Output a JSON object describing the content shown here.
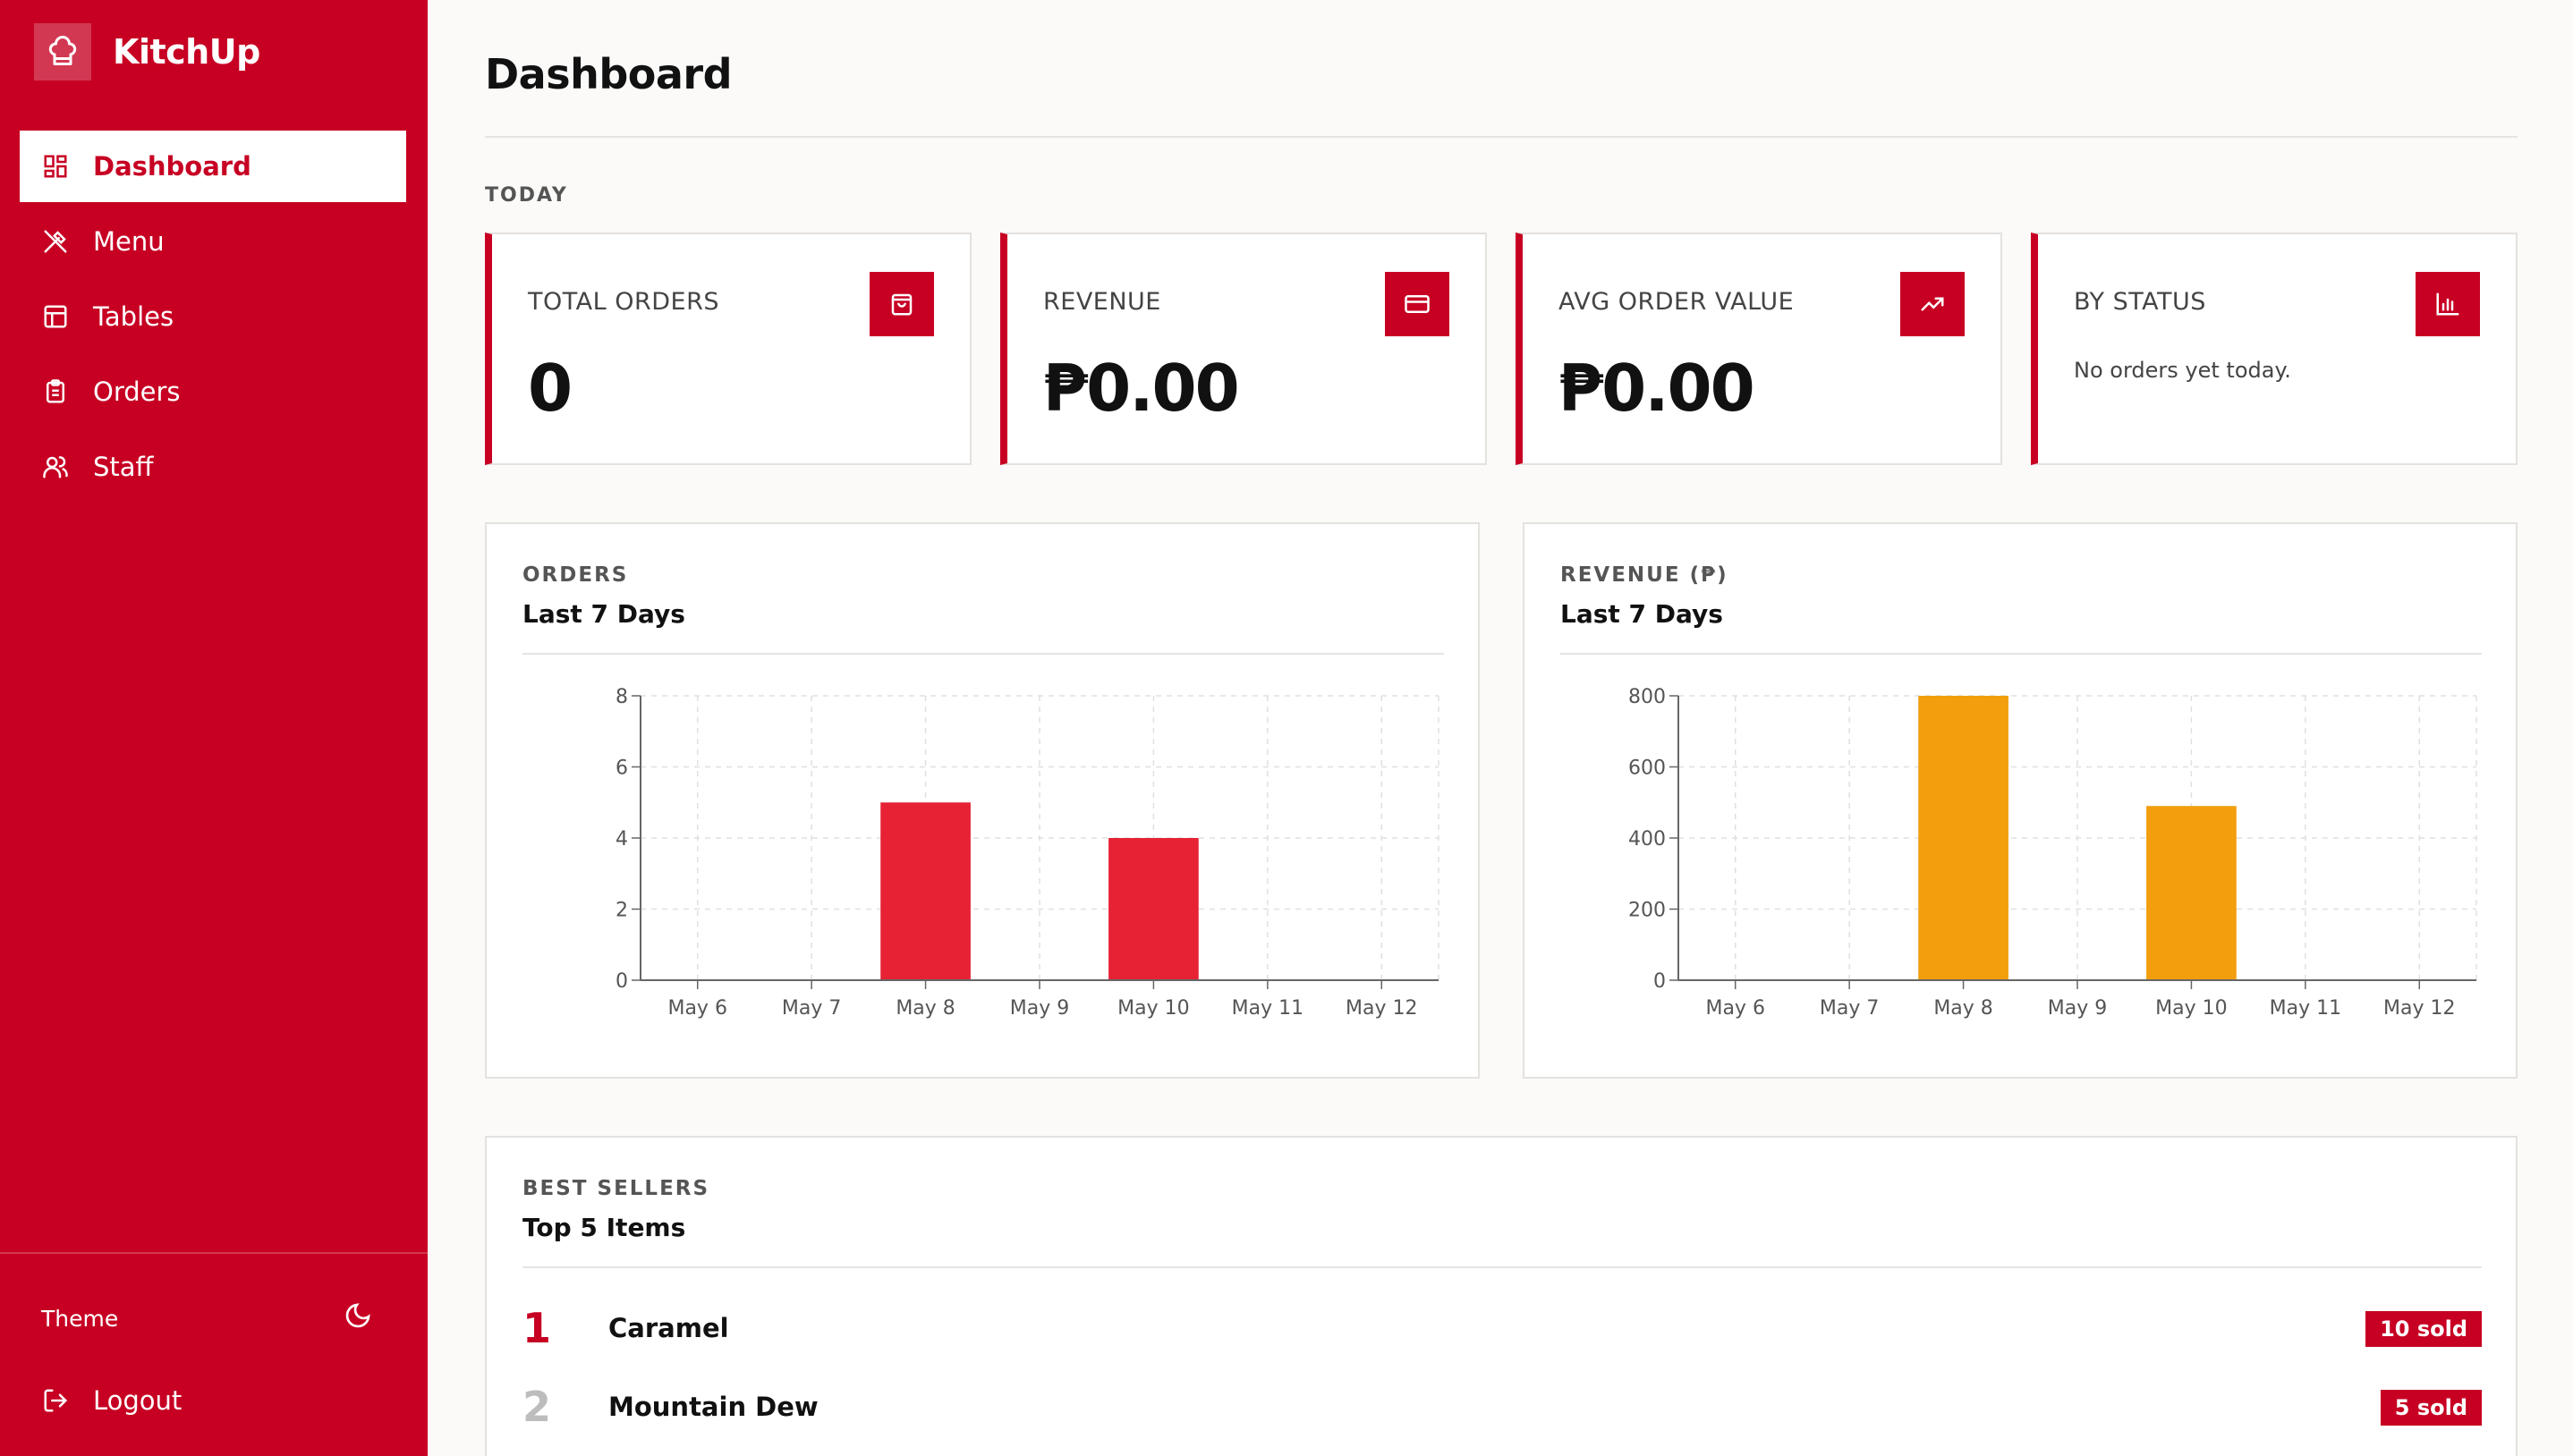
{
  "app": {
    "name": "KitchUp"
  },
  "sidebar": {
    "items": [
      {
        "label": "Dashboard",
        "icon": "dashboard-grid-icon",
        "active": true
      },
      {
        "label": "Menu",
        "icon": "utensils-icon",
        "active": false
      },
      {
        "label": "Tables",
        "icon": "table-icon",
        "active": false
      },
      {
        "label": "Orders",
        "icon": "clipboard-icon",
        "active": false
      },
      {
        "label": "Staff",
        "icon": "users-icon",
        "active": false
      }
    ],
    "theme_label": "Theme",
    "logout_label": "Logout"
  },
  "page": {
    "title": "Dashboard",
    "section_label": "TODAY"
  },
  "stats": [
    {
      "label": "TOTAL ORDERS",
      "value": "0",
      "icon": "shopping-bag-icon"
    },
    {
      "label": "REVENUE",
      "value": "₱0.00",
      "icon": "credit-card-icon"
    },
    {
      "label": "AVG ORDER VALUE",
      "value": "₱0.00",
      "icon": "trending-up-icon"
    },
    {
      "label": "BY STATUS",
      "note": "No orders yet today.",
      "icon": "bar-chart-icon"
    }
  ],
  "colors": {
    "brand": "#c70023",
    "orders_bar": "#e62234",
    "revenue_bar": "#f29e0d"
  },
  "chart_data": [
    {
      "type": "bar",
      "kicker": "ORDERS",
      "title": "Last 7 Days",
      "categories": [
        "May 6",
        "May 7",
        "May 8",
        "May 9",
        "May 10",
        "May 11",
        "May 12"
      ],
      "values": [
        0,
        0,
        5,
        0,
        4,
        0,
        0
      ],
      "ylim": [
        0,
        8
      ],
      "yticks": [
        "0",
        "2",
        "4",
        "6",
        "8"
      ],
      "grid": true,
      "color": "#e62234"
    },
    {
      "type": "bar",
      "kicker": "REVENUE (₱)",
      "title": "Last 7 Days",
      "categories": [
        "May 6",
        "May 7",
        "May 8",
        "May 9",
        "May 10",
        "May 11",
        "May 12"
      ],
      "values": [
        0,
        0,
        800,
        0,
        490,
        0,
        0
      ],
      "ylim": [
        0,
        800
      ],
      "yticks": [
        "0",
        "200",
        "400",
        "600",
        "800"
      ],
      "grid": true,
      "color": "#f29e0d"
    }
  ],
  "best_sellers": {
    "kicker": "BEST SELLERS",
    "title": "Top 5 Items",
    "items": [
      {
        "rank": "1",
        "name": "Caramel",
        "sold": "10 sold"
      },
      {
        "rank": "2",
        "name": "Mountain Dew",
        "sold": "5 sold"
      }
    ]
  }
}
